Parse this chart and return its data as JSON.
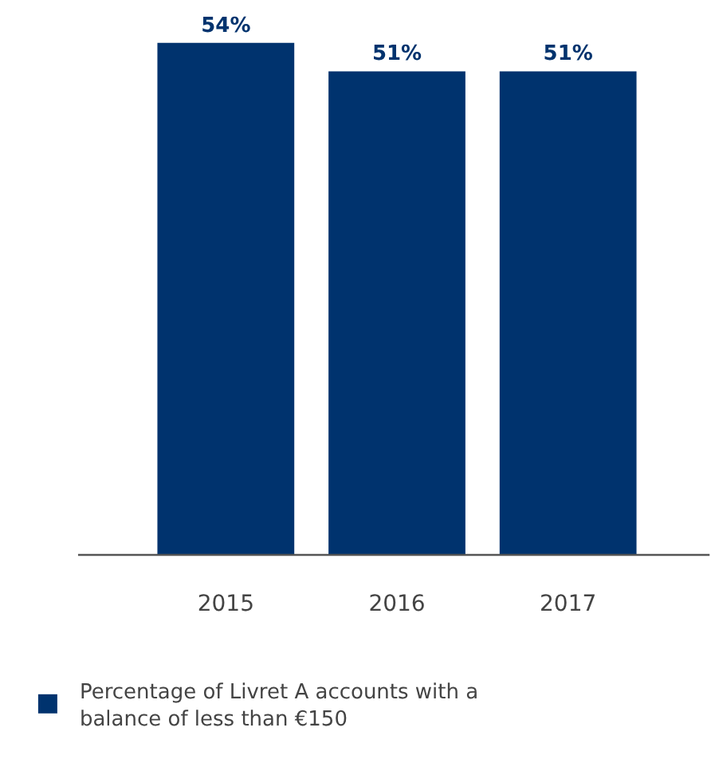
{
  "chart_data": {
    "type": "bar",
    "categories": [
      "2015",
      "2016",
      "2017"
    ],
    "series": [
      {
        "name": "Percentage of Livret A accounts with a balance of less than €150",
        "color": "#00336e",
        "values": [
          54,
          51,
          51
        ],
        "value_labels": [
          "54%",
          "51%",
          "51%"
        ]
      }
    ],
    "tick_labels": "x",
    "grid": false,
    "legend": "bottom left"
  }
}
